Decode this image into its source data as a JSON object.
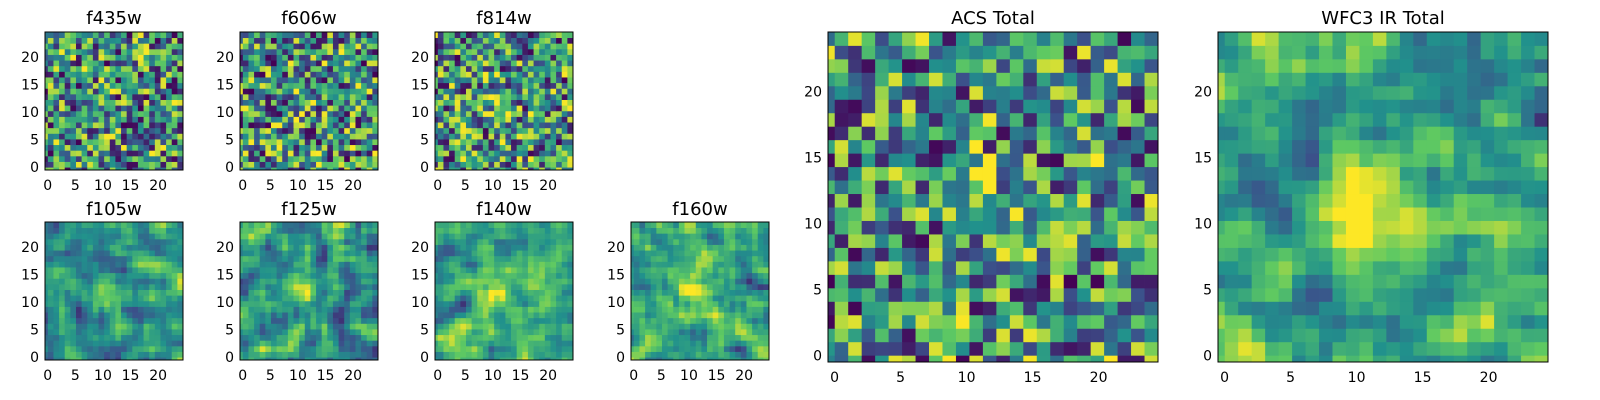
{
  "chart_data": [
    {
      "type": "heatmap",
      "title": "f435w",
      "grid": [
        25,
        25
      ],
      "xticks": [
        "0",
        "5",
        "10",
        "15",
        "20"
      ],
      "yticks": [
        "0",
        "5",
        "10",
        "15",
        "20"
      ],
      "source_pattern": "noise",
      "source_strength": 0.05
    },
    {
      "type": "heatmap",
      "title": "f606w",
      "grid": [
        25,
        25
      ],
      "xticks": [
        "0",
        "5",
        "10",
        "15",
        "20"
      ],
      "yticks": [
        "0",
        "5",
        "10",
        "15",
        "20"
      ],
      "source_pattern": "compact",
      "source_strength": 0.35
    },
    {
      "type": "heatmap",
      "title": "f814w",
      "grid": [
        25,
        25
      ],
      "xticks": [
        "0",
        "5",
        "10",
        "15",
        "20"
      ],
      "yticks": [
        "0",
        "5",
        "10",
        "15",
        "20"
      ],
      "source_pattern": "compact",
      "source_strength": 0.4
    },
    {
      "type": "heatmap",
      "title": "f105w",
      "grid": [
        25,
        25
      ],
      "xticks": [
        "0",
        "5",
        "10",
        "15",
        "20"
      ],
      "yticks": [
        "0",
        "5",
        "10",
        "15",
        "20"
      ],
      "source_pattern": "smooth",
      "source_strength": 0.3
    },
    {
      "type": "heatmap",
      "title": "f125w",
      "grid": [
        25,
        25
      ],
      "xticks": [
        "0",
        "5",
        "10",
        "15",
        "20"
      ],
      "yticks": [
        "0",
        "5",
        "10",
        "15",
        "20"
      ],
      "source_pattern": "smooth",
      "source_strength": 0.3
    },
    {
      "type": "heatmap",
      "title": "f140w",
      "grid": [
        25,
        25
      ],
      "xticks": [
        "0",
        "5",
        "10",
        "15",
        "20"
      ],
      "yticks": [
        "0",
        "5",
        "10",
        "15",
        "20"
      ],
      "source_pattern": "smooth",
      "source_strength": 0.35
    },
    {
      "type": "heatmap",
      "title": "f160w",
      "grid": [
        25,
        25
      ],
      "xticks": [
        "0",
        "5",
        "10",
        "15",
        "20"
      ],
      "yticks": [
        "0",
        "5",
        "10",
        "15",
        "20"
      ],
      "source_pattern": "smooth",
      "source_strength": 0.35
    },
    {
      "type": "heatmap",
      "title": "ACS Total",
      "grid": [
        25,
        25
      ],
      "xticks": [
        "0",
        "5",
        "10",
        "15",
        "20"
      ],
      "yticks": [
        "0",
        "5",
        "10",
        "15",
        "20"
      ],
      "source_pattern": "compact",
      "source_strength": 0.45
    },
    {
      "type": "heatmap",
      "title": "WFC3 IR Total",
      "grid": [
        25,
        25
      ],
      "xticks": [
        "0",
        "5",
        "10",
        "15",
        "20"
      ],
      "yticks": [
        "0",
        "5",
        "10",
        "15",
        "20"
      ],
      "source_pattern": "smooth",
      "source_strength": 0.4
    }
  ],
  "colormap": "viridis",
  "colormap_stops": [
    "#440154",
    "#3b528b",
    "#21918c",
    "#5ec962",
    "#fde725"
  ]
}
